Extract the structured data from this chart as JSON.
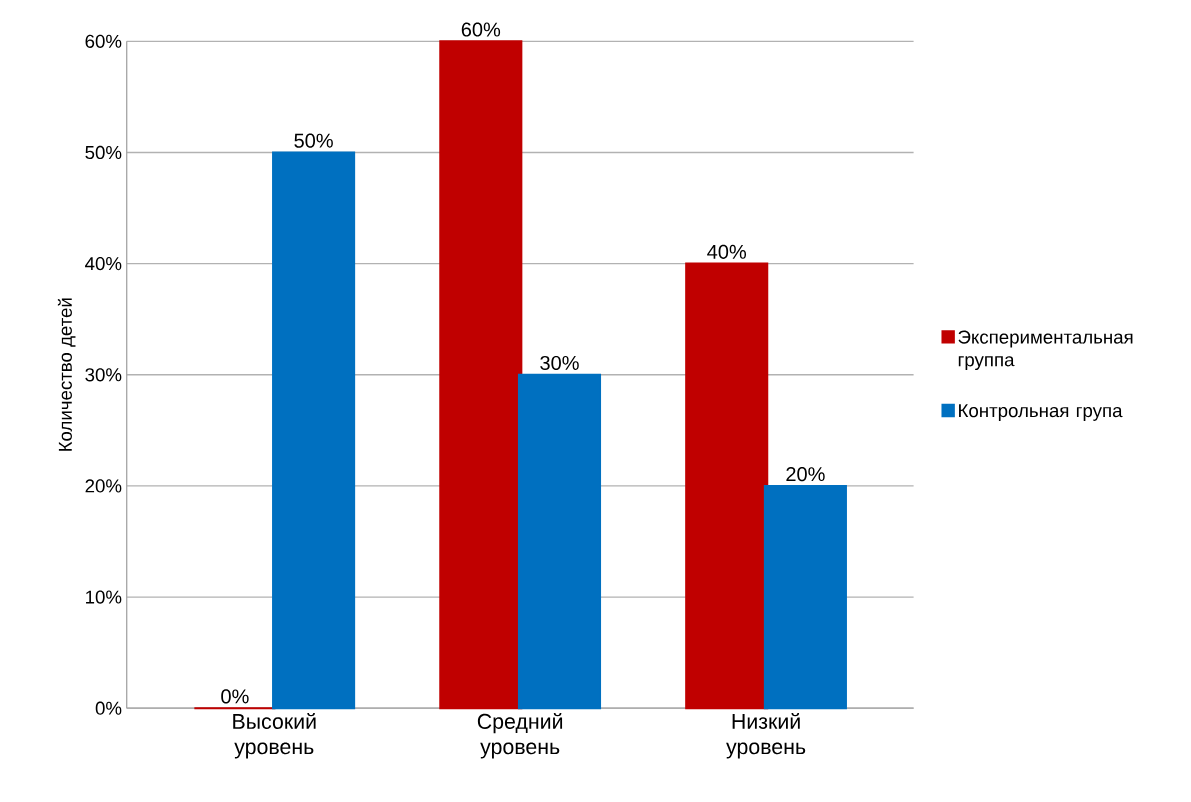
{
  "chart_data": {
    "type": "bar",
    "ylabel": "Количество детей",
    "categories": [
      "Высокий уровень",
      "Средний уровень",
      "Низкий уровень"
    ],
    "series": [
      {
        "name": "Экспериментальная группа",
        "color": "#c00000",
        "values": [
          0,
          60,
          40
        ],
        "value_labels": [
          "0%",
          "60%",
          "40%"
        ]
      },
      {
        "name": "Контрольная група",
        "color": "#0070c0",
        "values": [
          50,
          30,
          20
        ],
        "value_labels": [
          "50%",
          "30%",
          "20%"
        ]
      }
    ],
    "ylim": [
      0,
      60
    ],
    "yticks": [
      {
        "value": 0,
        "label": "0%"
      },
      {
        "value": 10,
        "label": "10%"
      },
      {
        "value": 20,
        "label": "20%"
      },
      {
        "value": 30,
        "label": "30%"
      },
      {
        "value": 40,
        "label": "40%"
      },
      {
        "value": 50,
        "label": "50%"
      },
      {
        "value": 60,
        "label": "60%"
      }
    ],
    "grid": "y",
    "legend": "right"
  }
}
